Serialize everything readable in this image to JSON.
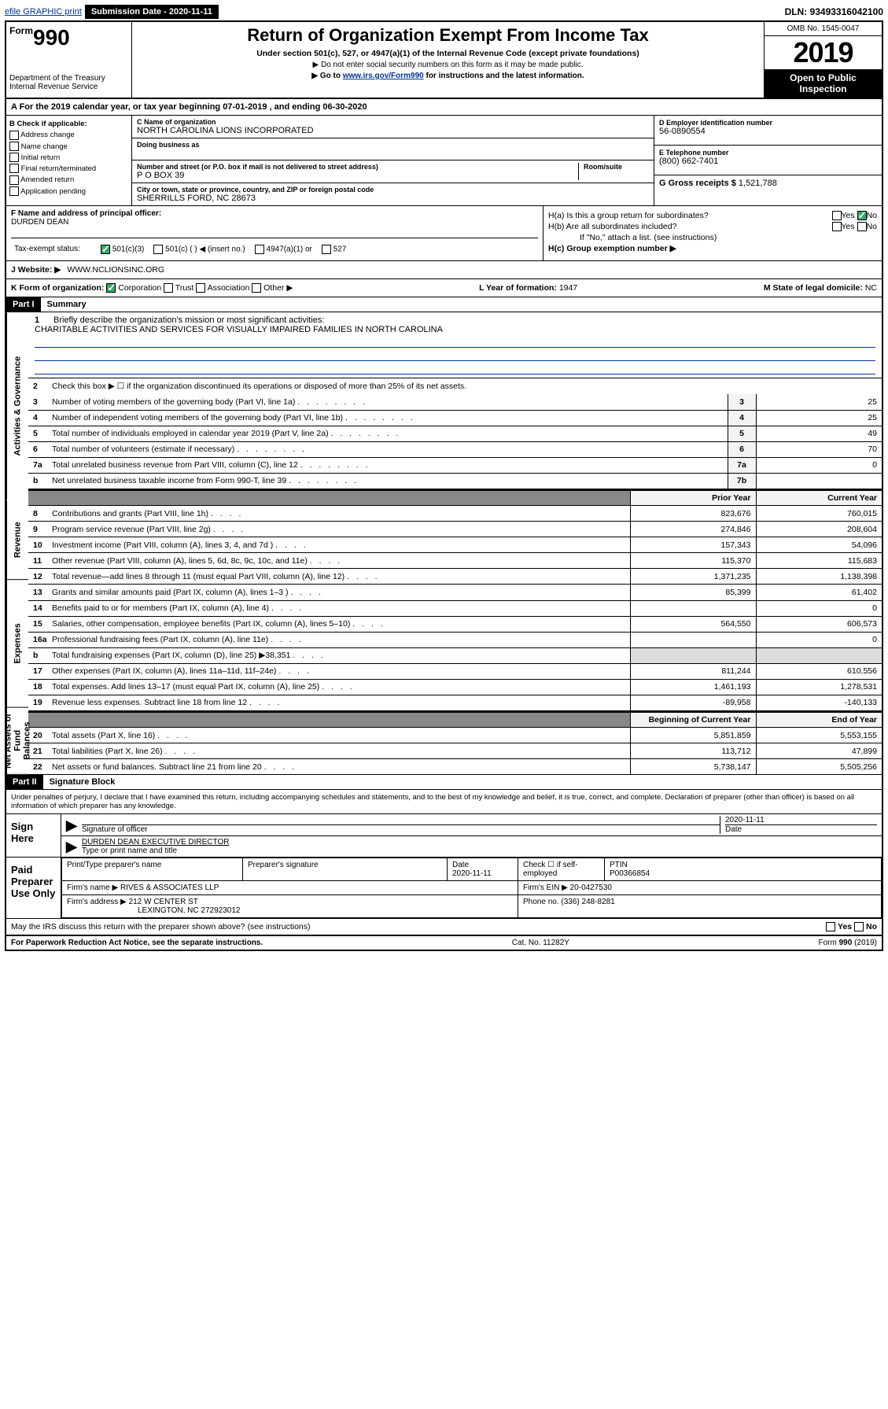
{
  "topbar": {
    "efile": "efile GRAPHIC print",
    "submission_label": "Submission Date - 2020-11-11",
    "dln": "DLN: 93493316042100"
  },
  "header": {
    "form_label": "Form",
    "form_number": "990",
    "dept": "Department of the Treasury",
    "irs": "Internal Revenue Service",
    "title": "Return of Organization Exempt From Income Tax",
    "subtitle": "Under section 501(c), 527, or 4947(a)(1) of the Internal Revenue Code (except private foundations)",
    "note1": "▶ Do not enter social security numbers on this form as it may be made public.",
    "note2_pre": "▶ Go to ",
    "note2_link": "www.irs.gov/Form990",
    "note2_post": " for instructions and the latest information.",
    "omb": "OMB No. 1545-0047",
    "year": "2019",
    "open": "Open to Public Inspection"
  },
  "line_a": "A For the 2019 calendar year, or tax year beginning 07-01-2019    , and ending 06-30-2020",
  "box_b": {
    "label": "B Check if applicable:",
    "opts": [
      "Address change",
      "Name change",
      "Initial return",
      "Final return/terminated",
      "Amended return",
      "Application pending"
    ]
  },
  "box_c": {
    "name_label": "C Name of organization",
    "name": "NORTH CAROLINA LIONS INCORPORATED",
    "dba_label": "Doing business as",
    "dba": "",
    "addr_label": "Number and street (or P.O. box if mail is not delivered to street address)",
    "room_label": "Room/suite",
    "addr": "P O BOX 39",
    "city_label": "City or town, state or province, country, and ZIP or foreign postal code",
    "city": "SHERRILLS FORD, NC  28673"
  },
  "box_d": {
    "label": "D Employer identification number",
    "val": "56-0890554"
  },
  "box_e": {
    "label": "E Telephone number",
    "val": "(800) 662-7401"
  },
  "box_g": {
    "label": "G Gross receipts $",
    "val": "1,521,788"
  },
  "box_f": {
    "label": "F  Name and address of principal officer:",
    "val": "DURDEN DEAN"
  },
  "box_h": {
    "a": "H(a)  Is this a group return for subordinates?",
    "b": "H(b)  Are all subordinates included?",
    "b_note": "If \"No,\" attach a list. (see instructions)",
    "c": "H(c)  Group exemption number ▶",
    "yes": "Yes",
    "no": "No"
  },
  "status": {
    "label": "Tax-exempt status:",
    "o1": "501(c)(3)",
    "o2": "501(c) (   ) ◀ (insert no.)",
    "o3": "4947(a)(1) or",
    "o4": "527"
  },
  "website": {
    "label": "Website: ▶",
    "val": "WWW.NCLIONSINC.ORG"
  },
  "k": {
    "label": "K Form of organization:",
    "corp": "Corporation",
    "trust": "Trust",
    "assoc": "Association",
    "other": "Other ▶"
  },
  "l": {
    "label": "L Year of formation:",
    "val": "1947"
  },
  "m": {
    "label": "M State of legal domicile:",
    "val": "NC"
  },
  "part1": {
    "header": "Part I",
    "title": "Summary",
    "tab_ag": "Activities & Governance",
    "tab_rev": "Revenue",
    "tab_exp": "Expenses",
    "tab_na": "Net Assets or Fund Balances",
    "l1": "Briefly describe the organization's mission or most significant activities:",
    "mission": "CHARITABLE ACTIVITIES AND SERVICES FOR VISUALLY IMPAIRED FAMILIES IN NORTH CAROLINA",
    "l2": "Check this box ▶ ☐ if the organization discontinued its operations or disposed of more than 25% of its net assets.",
    "rows_ag": [
      {
        "n": "3",
        "t": "Number of voting members of the governing body (Part VI, line 1a)",
        "k": "3",
        "v": "25"
      },
      {
        "n": "4",
        "t": "Number of independent voting members of the governing body (Part VI, line 1b)",
        "k": "4",
        "v": "25"
      },
      {
        "n": "5",
        "t": "Total number of individuals employed in calendar year 2019 (Part V, line 2a)",
        "k": "5",
        "v": "49"
      },
      {
        "n": "6",
        "t": "Total number of volunteers (estimate if necessary)",
        "k": "6",
        "v": "70"
      },
      {
        "n": "7a",
        "t": "Total unrelated business revenue from Part VIII, column (C), line 12",
        "k": "7a",
        "v": "0"
      },
      {
        "n": "b",
        "t": "Net unrelated business taxable income from Form 990-T, line 39",
        "k": "7b",
        "v": ""
      }
    ],
    "col_prior": "Prior Year",
    "col_current": "Current Year",
    "rows_rev": [
      {
        "n": "8",
        "t": "Contributions and grants (Part VIII, line 1h)",
        "p": "823,676",
        "c": "760,015"
      },
      {
        "n": "9",
        "t": "Program service revenue (Part VIII, line 2g)",
        "p": "274,846",
        "c": "208,604"
      },
      {
        "n": "10",
        "t": "Investment income (Part VIII, column (A), lines 3, 4, and 7d )",
        "p": "157,343",
        "c": "54,096"
      },
      {
        "n": "11",
        "t": "Other revenue (Part VIII, column (A), lines 5, 6d, 8c, 9c, 10c, and 11e)",
        "p": "115,370",
        "c": "115,683"
      },
      {
        "n": "12",
        "t": "Total revenue—add lines 8 through 11 (must equal Part VIII, column (A), line 12)",
        "p": "1,371,235",
        "c": "1,138,398"
      }
    ],
    "rows_exp": [
      {
        "n": "13",
        "t": "Grants and similar amounts paid (Part IX, column (A), lines 1–3 )",
        "p": "85,399",
        "c": "61,402"
      },
      {
        "n": "14",
        "t": "Benefits paid to or for members (Part IX, column (A), line 4)",
        "p": "",
        "c": "0"
      },
      {
        "n": "15",
        "t": "Salaries, other compensation, employee benefits (Part IX, column (A), lines 5–10)",
        "p": "564,550",
        "c": "606,573"
      },
      {
        "n": "16a",
        "t": "Professional fundraising fees (Part IX, column (A), line 11e)",
        "p": "",
        "c": "0"
      },
      {
        "n": "b",
        "t": "Total fundraising expenses (Part IX, column (D), line 25) ▶38,351",
        "p": "grey",
        "c": "grey"
      },
      {
        "n": "17",
        "t": "Other expenses (Part IX, column (A), lines 11a–11d, 11f–24e)",
        "p": "811,244",
        "c": "610,556"
      },
      {
        "n": "18",
        "t": "Total expenses. Add lines 13–17 (must equal Part IX, column (A), line 25)",
        "p": "1,461,193",
        "c": "1,278,531"
      },
      {
        "n": "19",
        "t": "Revenue less expenses. Subtract line 18 from line 12",
        "p": "-89,958",
        "c": "-140,133"
      }
    ],
    "col_begin": "Beginning of Current Year",
    "col_end": "End of Year",
    "rows_na": [
      {
        "n": "20",
        "t": "Total assets (Part X, line 16)",
        "p": "5,851,859",
        "c": "5,553,155"
      },
      {
        "n": "21",
        "t": "Total liabilities (Part X, line 26)",
        "p": "113,712",
        "c": "47,899"
      },
      {
        "n": "22",
        "t": "Net assets or fund balances. Subtract line 21 from line 20",
        "p": "5,738,147",
        "c": "5,505,256"
      }
    ]
  },
  "part2": {
    "header": "Part II",
    "title": "Signature Block",
    "perjury": "Under penalties of perjury, I declare that I have examined this return, including accompanying schedules and statements, and to the best of my knowledge and belief, it is true, correct, and complete. Declaration of preparer (other than officer) is based on all information of which preparer has any knowledge.",
    "sign_here": "Sign Here",
    "sig_officer": "Signature of officer",
    "date": "Date",
    "date_val": "2020-11-11",
    "name_title": "DURDEN DEAN  EXECUTIVE DIRECTOR",
    "name_title_lbl": "Type or print name and title",
    "paid": "Paid Preparer Use Only",
    "prep_name_lbl": "Print/Type preparer's name",
    "prep_sig_lbl": "Preparer's signature",
    "prep_date_lbl": "Date",
    "prep_date": "2020-11-11",
    "check_lbl": "Check ☐ if self-employed",
    "ptin_lbl": "PTIN",
    "ptin": "P00366854",
    "firm_name_lbl": "Firm's name    ▶",
    "firm_name": "RIVES & ASSOCIATES LLP",
    "firm_ein_lbl": "Firm's EIN ▶",
    "firm_ein": "20-0427530",
    "firm_addr_lbl": "Firm's address ▶",
    "firm_addr1": "212 W CENTER ST",
    "firm_addr2": "LEXINGTON, NC  272923012",
    "phone_lbl": "Phone no.",
    "phone": "(336) 248-8281",
    "discuss": "May the IRS discuss this return with the preparer shown above? (see instructions)",
    "paperwork": "For Paperwork Reduction Act Notice, see the separate instructions.",
    "cat": "Cat. No. 11282Y",
    "form_foot": "Form 990 (2019)"
  }
}
